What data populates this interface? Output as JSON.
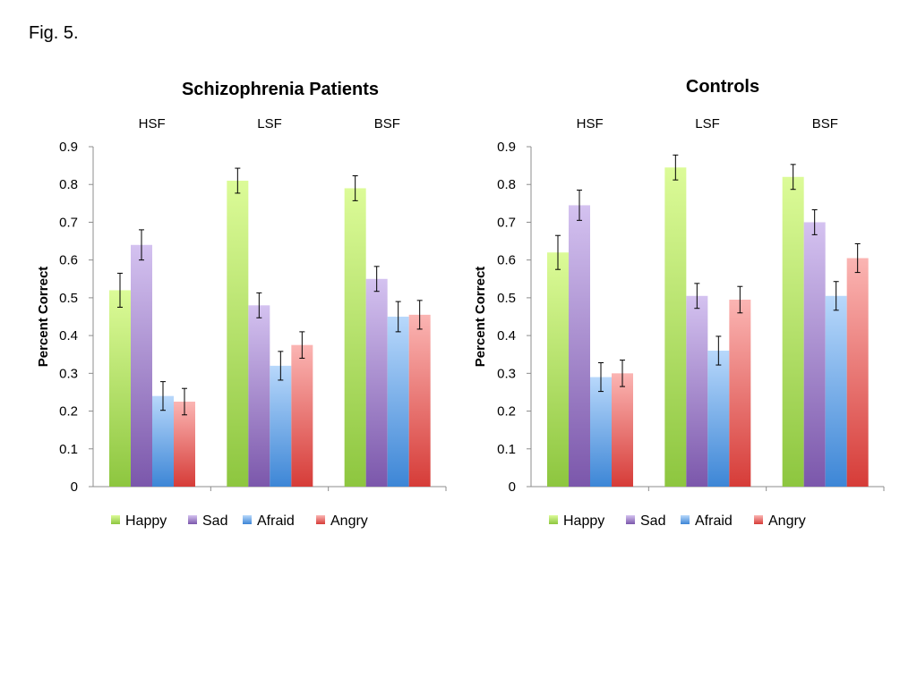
{
  "figure_label": "Fig. 5.",
  "colors": {
    "Happy": [
      "#dcfb98",
      "#8dc63f"
    ],
    "Sad": [
      "#d4c2f0",
      "#7b57ab"
    ],
    "Afraid": [
      "#b8d8fb",
      "#3d86d6"
    ],
    "Angry": [
      "#fbb5b3",
      "#d63c38"
    ]
  },
  "chart_data": [
    {
      "type": "bar",
      "title": "Schizophrenia Patients",
      "ylabel": "Percent Correct",
      "xlabel": "",
      "ylim": [
        0,
        0.9
      ],
      "yticks": [
        "0",
        "0.1",
        "0.2",
        "0.3",
        "0.4",
        "0.5",
        "0.6",
        "0.7",
        "0.8",
        "0.9"
      ],
      "categories": [
        "HSF",
        "LSF",
        "BSF"
      ],
      "series": [
        {
          "name": "Happy",
          "values": [
            0.52,
            0.81,
            0.79
          ],
          "errors": [
            0.045,
            0.033,
            0.033
          ]
        },
        {
          "name": "Sad",
          "values": [
            0.64,
            0.48,
            0.55
          ],
          "errors": [
            0.04,
            0.033,
            0.033
          ]
        },
        {
          "name": "Afraid",
          "values": [
            0.24,
            0.32,
            0.45
          ],
          "errors": [
            0.038,
            0.038,
            0.04
          ]
        },
        {
          "name": "Angry",
          "values": [
            0.225,
            0.375,
            0.455
          ],
          "errors": [
            0.035,
            0.035,
            0.038
          ]
        }
      ],
      "legend": "bottom",
      "grid": false
    },
    {
      "type": "bar",
      "title": "Controls",
      "ylabel": "Percent Correct",
      "xlabel": "",
      "ylim": [
        0,
        0.9
      ],
      "yticks": [
        "0",
        "0.1",
        "0.2",
        "0.3",
        "0.4",
        "0.5",
        "0.6",
        "0.7",
        "0.8",
        "0.9"
      ],
      "categories": [
        "HSF",
        "LSF",
        "BSF"
      ],
      "series": [
        {
          "name": "Happy",
          "values": [
            0.62,
            0.845,
            0.82
          ],
          "errors": [
            0.045,
            0.033,
            0.033
          ]
        },
        {
          "name": "Sad",
          "values": [
            0.745,
            0.505,
            0.7
          ],
          "errors": [
            0.04,
            0.033,
            0.033
          ]
        },
        {
          "name": "Afraid",
          "values": [
            0.29,
            0.36,
            0.505
          ],
          "errors": [
            0.038,
            0.038,
            0.038
          ]
        },
        {
          "name": "Angry",
          "values": [
            0.3,
            0.495,
            0.605
          ],
          "errors": [
            0.035,
            0.035,
            0.038
          ]
        }
      ],
      "legend": "bottom",
      "grid": false
    }
  ]
}
